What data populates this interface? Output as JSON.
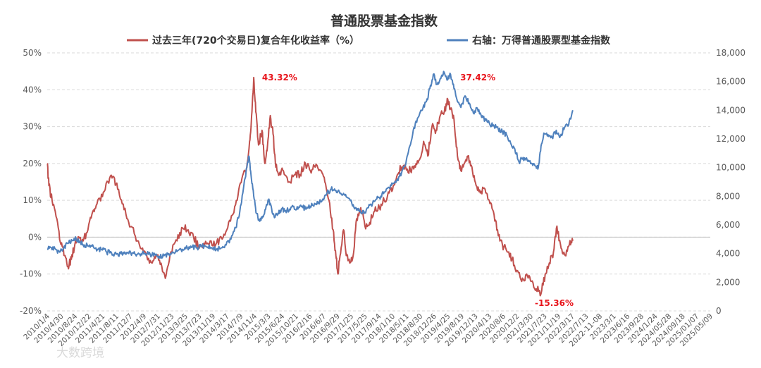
{
  "chart_data": {
    "type": "line",
    "title": "普通股票基金指数",
    "series": [
      {
        "name": "过去三年(720个交易日)复合年化收益率（%）",
        "axis": "left",
        "color": "#c0504d",
        "points": [
          [
            0,
            20
          ],
          [
            0.12,
            14
          ],
          [
            0.35,
            10
          ],
          [
            0.7,
            5
          ],
          [
            1.0,
            -2
          ],
          [
            1.25,
            -5
          ],
          [
            1.5,
            -8
          ],
          [
            1.75,
            -6
          ],
          [
            2.0,
            -2
          ],
          [
            2.3,
            0
          ],
          [
            2.6,
            -1
          ],
          [
            2.95,
            2
          ],
          [
            3.3,
            7
          ],
          [
            3.6,
            9
          ],
          [
            4.0,
            11
          ],
          [
            4.4,
            15
          ],
          [
            4.75,
            16.5
          ],
          [
            5.1,
            13
          ],
          [
            5.5,
            9
          ],
          [
            5.9,
            4
          ],
          [
            6.3,
            1
          ],
          [
            6.75,
            -3
          ],
          [
            7.2,
            -5
          ],
          [
            7.6,
            -7
          ],
          [
            7.95,
            -5
          ],
          [
            8.3,
            -8
          ],
          [
            8.6,
            -10.5
          ],
          [
            8.95,
            -4
          ],
          [
            9.4,
            -1
          ],
          [
            9.8,
            2.5
          ],
          [
            10.2,
            2
          ],
          [
            10.6,
            0
          ],
          [
            11.0,
            -3
          ],
          [
            11.4,
            -2
          ],
          [
            11.8,
            -1
          ],
          [
            12.2,
            -2
          ],
          [
            12.6,
            0
          ],
          [
            13.0,
            2
          ],
          [
            13.4,
            6
          ],
          [
            13.75,
            10
          ],
          [
            14.1,
            16
          ],
          [
            14.4,
            18
          ],
          [
            14.65,
            26
          ],
          [
            14.8,
            33
          ],
          [
            14.95,
            43.32
          ],
          [
            15.1,
            34
          ],
          [
            15.3,
            25
          ],
          [
            15.55,
            29
          ],
          [
            15.75,
            20
          ],
          [
            15.95,
            25
          ],
          [
            16.15,
            33
          ],
          [
            16.35,
            28
          ],
          [
            16.55,
            19
          ],
          [
            16.8,
            17
          ],
          [
            17.1,
            18
          ],
          [
            17.5,
            15
          ],
          [
            17.95,
            17
          ],
          [
            18.3,
            17
          ],
          [
            18.7,
            20
          ],
          [
            19.05,
            18
          ],
          [
            19.4,
            19
          ],
          [
            19.8,
            18
          ],
          [
            20.1,
            15
          ],
          [
            20.4,
            10
          ],
          [
            20.7,
            2
          ],
          [
            20.9,
            -5
          ],
          [
            21.05,
            -10
          ],
          [
            21.2,
            -5
          ],
          [
            21.45,
            2
          ],
          [
            21.65,
            -5
          ],
          [
            21.9,
            -7
          ],
          [
            22.15,
            -5
          ],
          [
            22.4,
            5
          ],
          [
            22.7,
            8
          ],
          [
            23.0,
            3
          ],
          [
            23.35,
            4
          ],
          [
            23.7,
            7
          ],
          [
            24.05,
            8
          ],
          [
            24.4,
            10
          ],
          [
            24.75,
            12
          ],
          [
            25.05,
            14
          ],
          [
            25.35,
            17
          ],
          [
            25.65,
            19
          ],
          [
            25.95,
            19
          ],
          [
            26.3,
            18
          ],
          [
            26.65,
            19
          ],
          [
            26.95,
            21
          ],
          [
            27.25,
            26
          ],
          [
            27.55,
            22
          ],
          [
            27.85,
            30
          ],
          [
            28.15,
            29
          ],
          [
            28.45,
            33
          ],
          [
            28.75,
            34
          ],
          [
            29.0,
            37.42
          ],
          [
            29.2,
            35
          ],
          [
            29.45,
            32
          ],
          [
            29.7,
            22
          ],
          [
            29.95,
            18
          ],
          [
            30.2,
            20
          ],
          [
            30.45,
            22
          ],
          [
            30.75,
            19
          ],
          [
            31.05,
            14
          ],
          [
            31.35,
            12
          ],
          [
            31.7,
            13
          ],
          [
            32.0,
            10
          ],
          [
            32.3,
            7
          ],
          [
            32.6,
            2
          ],
          [
            32.95,
            -2
          ],
          [
            33.3,
            -4
          ],
          [
            33.65,
            -6
          ],
          [
            34.0,
            -9
          ],
          [
            34.35,
            -12
          ],
          [
            34.7,
            -10
          ],
          [
            35.05,
            -12
          ],
          [
            35.4,
            -14
          ],
          [
            35.75,
            -15.36
          ],
          [
            36.05,
            -10
          ],
          [
            36.35,
            -7
          ],
          [
            36.65,
            -4
          ],
          [
            36.9,
            3
          ],
          [
            37.2,
            -3
          ],
          [
            37.5,
            -5
          ],
          [
            37.8,
            -2
          ],
          [
            38.05,
            -1
          ]
        ]
      },
      {
        "name": "右轴：万得普通股票型基金指数",
        "axis": "right",
        "color": "#4f81bd",
        "points": [
          [
            0,
            4300
          ],
          [
            0.3,
            4400
          ],
          [
            0.6,
            4300
          ],
          [
            0.9,
            4100
          ],
          [
            1.2,
            4400
          ],
          [
            1.5,
            4700
          ],
          [
            1.8,
            4900
          ],
          [
            2.1,
            5000
          ],
          [
            2.4,
            4800
          ],
          [
            2.7,
            4600
          ],
          [
            3.0,
            4500
          ],
          [
            3.35,
            4450
          ],
          [
            3.7,
            4300
          ],
          [
            4.0,
            4250
          ],
          [
            4.3,
            4100
          ],
          [
            4.65,
            4050
          ],
          [
            5.0,
            3950
          ],
          [
            5.3,
            4000
          ],
          [
            5.6,
            4100
          ],
          [
            5.9,
            4000
          ],
          [
            6.2,
            4050
          ],
          [
            6.5,
            3950
          ],
          [
            6.8,
            3980
          ],
          [
            7.1,
            4000
          ],
          [
            7.45,
            3950
          ],
          [
            7.8,
            3900
          ],
          [
            8.1,
            3800
          ],
          [
            8.45,
            3850
          ],
          [
            8.8,
            4000
          ],
          [
            9.1,
            4100
          ],
          [
            9.45,
            4200
          ],
          [
            9.8,
            4300
          ],
          [
            10.15,
            4400
          ],
          [
            10.5,
            4450
          ],
          [
            10.85,
            4400
          ],
          [
            11.2,
            4500
          ],
          [
            11.55,
            4450
          ],
          [
            11.9,
            4400
          ],
          [
            12.25,
            4300
          ],
          [
            12.6,
            4400
          ],
          [
            12.95,
            4600
          ],
          [
            13.3,
            5000
          ],
          [
            13.65,
            5800
          ],
          [
            13.95,
            7000
          ],
          [
            14.2,
            8500
          ],
          [
            14.45,
            10000
          ],
          [
            14.6,
            10800
          ],
          [
            14.75,
            9500
          ],
          [
            14.95,
            8000
          ],
          [
            15.15,
            6800
          ],
          [
            15.35,
            6300
          ],
          [
            15.6,
            6600
          ],
          [
            15.85,
            7300
          ],
          [
            16.05,
            7800
          ],
          [
            16.25,
            7100
          ],
          [
            16.45,
            6500
          ],
          [
            16.7,
            6800
          ],
          [
            16.95,
            7100
          ],
          [
            17.25,
            7000
          ],
          [
            17.55,
            7100
          ],
          [
            17.85,
            7300
          ],
          [
            18.15,
            7100
          ],
          [
            18.45,
            7300
          ],
          [
            18.75,
            7100
          ],
          [
            19.05,
            7300
          ],
          [
            19.35,
            7500
          ],
          [
            19.65,
            7600
          ],
          [
            19.95,
            7800
          ],
          [
            20.25,
            8200
          ],
          [
            20.55,
            8500
          ],
          [
            20.85,
            8400
          ],
          [
            21.15,
            8300
          ],
          [
            21.45,
            8200
          ],
          [
            21.75,
            7900
          ],
          [
            22.05,
            7500
          ],
          [
            22.35,
            7200
          ],
          [
            22.65,
            7000
          ],
          [
            22.95,
            6800
          ],
          [
            23.25,
            7200
          ],
          [
            23.55,
            7500
          ],
          [
            23.85,
            7800
          ],
          [
            24.15,
            8000
          ],
          [
            24.45,
            8300
          ],
          [
            24.75,
            8600
          ],
          [
            25.05,
            8900
          ],
          [
            25.35,
            9200
          ],
          [
            25.65,
            9600
          ],
          [
            25.95,
            10200
          ],
          [
            26.25,
            11500
          ],
          [
            26.55,
            12800
          ],
          [
            26.85,
            13500
          ],
          [
            27.15,
            14000
          ],
          [
            27.45,
            14600
          ],
          [
            27.7,
            15500
          ],
          [
            27.95,
            16500
          ],
          [
            28.2,
            15800
          ],
          [
            28.45,
            16200
          ],
          [
            28.7,
            16700
          ],
          [
            28.95,
            16100
          ],
          [
            29.2,
            16500
          ],
          [
            29.45,
            15500
          ],
          [
            29.7,
            14600
          ],
          [
            29.95,
            14200
          ],
          [
            30.25,
            15000
          ],
          [
            30.55,
            14500
          ],
          [
            30.85,
            13800
          ],
          [
            31.15,
            14100
          ],
          [
            31.45,
            13500
          ],
          [
            31.75,
            13300
          ],
          [
            32.05,
            13000
          ],
          [
            32.35,
            12900
          ],
          [
            32.65,
            12700
          ],
          [
            32.95,
            12500
          ],
          [
            33.25,
            12300
          ],
          [
            33.55,
            11700
          ],
          [
            33.85,
            11300
          ],
          [
            34.15,
            10400
          ],
          [
            34.45,
            10700
          ],
          [
            34.75,
            10500
          ],
          [
            35.05,
            10300
          ],
          [
            35.35,
            10100
          ],
          [
            35.55,
            10000
          ],
          [
            35.75,
            11500
          ],
          [
            35.95,
            12400
          ],
          [
            36.25,
            12300
          ],
          [
            36.55,
            12100
          ],
          [
            36.85,
            12600
          ],
          [
            37.15,
            12200
          ],
          [
            37.45,
            12800
          ],
          [
            37.75,
            13000
          ],
          [
            38.05,
            14000
          ]
        ]
      }
    ],
    "left_axis": {
      "min": -20,
      "max": 50,
      "ticks": [
        "-20%",
        "-10%",
        "0%",
        "10%",
        "20%",
        "30%",
        "40%",
        "50%"
      ]
    },
    "right_axis": {
      "min": 0,
      "max": 18000,
      "ticks": [
        "0",
        "2,000",
        "4,000",
        "6,000",
        "8,000",
        "10,000",
        "12,000",
        "14,000",
        "16,000",
        "18,000"
      ]
    },
    "x_labels": [
      "2010/1/4",
      "2010/4/30",
      "2010/8/24",
      "2010/12/22",
      "2011/4/21",
      "2011/8/11",
      "2011/12/7",
      "2012/4/9",
      "2012/7/31",
      "2012/11/23",
      "2013/3/25",
      "2013/7/23",
      "2013/11/19",
      "2014/3/17",
      "2014/7/9",
      "2014/11/4",
      "2015/3/3",
      "2015/6/24",
      "2015/10/21",
      "2016/2/16",
      "2016/6/7",
      "2016/9/29",
      "2017/1/25",
      "2017/5/25",
      "2017/9/14",
      "2018/1/10",
      "2018/5/11",
      "2018/8/30",
      "2018/12/26",
      "2019/4/25",
      "2019/8/19",
      "2019/12/13",
      "2020/4/13",
      "2020/8/6",
      "2020/12/2",
      "2021/3/30",
      "2021/7/23",
      "2021/11/19",
      "2022/3/17",
      "2022/7/13",
      "2022-11-08",
      "2023/3/1",
      "2023/6/16",
      "2023/9/28",
      "2024/1/24",
      "2024/05/28",
      "2024/09/18",
      "2025/01/07",
      "2025/05/09"
    ],
    "annotations": [
      {
        "text": "43.32%",
        "x": 15.55,
        "y": 43.32
      },
      {
        "text": "37.42%",
        "x": 29.9,
        "y": 43.32
      },
      {
        "text": "-15.36%",
        "x": 35.3,
        "y": -17.9
      }
    ],
    "grid": "horizontal dashed",
    "legend_position": "top"
  },
  "watermark": "大数跨境"
}
